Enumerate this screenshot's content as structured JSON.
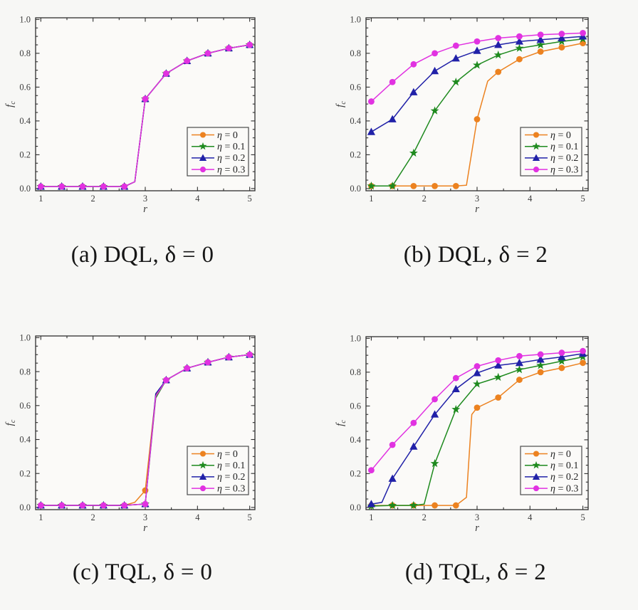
{
  "style": {
    "page_bg": "#f7f7f5",
    "plot_bg": "#fbfaf8",
    "spine": "#2e2e2e",
    "tick_label": "#3c3c3c",
    "caption_color": "#161616",
    "legend_border": "#4a4a4a",
    "series_colors": {
      "eta-0": "#ec8220",
      "eta-0.1": "#1e8a1e",
      "eta-0.2": "#2121a8",
      "eta-0.3": "#e132e1"
    }
  },
  "chart_data": [
    {
      "id": "a",
      "caption": "(a) DQL, δ = 0",
      "type": "line",
      "xlabel": "r",
      "ylabel": "f",
      "ylabel_sub": "c",
      "xlim": [
        0.9,
        5.1
      ],
      "ylim": [
        -0.013,
        1.01
      ],
      "x_ticks": [
        "1",
        "2",
        "3",
        "4",
        "5"
      ],
      "x_minor_ticks": [
        1.5,
        2.5,
        3.5,
        4.5
      ],
      "y_ticks": [
        "0.0",
        "0.2",
        "0.4",
        "0.6",
        "0.8",
        "1.0"
      ],
      "grid": false,
      "legend_position": "lower right",
      "x": [
        1,
        1.4,
        1.8,
        2.2,
        2.6,
        3,
        3.4,
        3.8,
        4.2,
        4.6,
        5
      ],
      "series": [
        {
          "key": "eta-0",
          "name": "η = 0",
          "marker": "circle",
          "color": "#ec8220",
          "values": [
            0.012,
            0.012,
            0.012,
            0.012,
            0.012,
            0.53,
            0.68,
            0.755,
            0.8,
            0.83,
            0.85
          ],
          "line": [
            [
              1,
              0.012
            ],
            [
              1.4,
              0.012
            ],
            [
              1.8,
              0.012
            ],
            [
              2.2,
              0.012
            ],
            [
              2.6,
              0.012
            ],
            [
              2.8,
              0.04
            ],
            [
              3,
              0.53
            ],
            [
              3.4,
              0.68
            ],
            [
              3.8,
              0.755
            ],
            [
              4.2,
              0.8
            ],
            [
              4.6,
              0.83
            ],
            [
              5,
              0.85
            ]
          ]
        },
        {
          "key": "eta-0.1",
          "name": "η = 0.1",
          "marker": "star",
          "color": "#1e8a1e",
          "values": [
            0.012,
            0.012,
            0.012,
            0.012,
            0.012,
            0.53,
            0.68,
            0.755,
            0.8,
            0.83,
            0.85
          ],
          "line": [
            [
              1,
              0.012
            ],
            [
              1.4,
              0.012
            ],
            [
              1.8,
              0.012
            ],
            [
              2.2,
              0.012
            ],
            [
              2.6,
              0.012
            ],
            [
              2.8,
              0.04
            ],
            [
              3,
              0.53
            ],
            [
              3.4,
              0.68
            ],
            [
              3.8,
              0.755
            ],
            [
              4.2,
              0.8
            ],
            [
              4.6,
              0.83
            ],
            [
              5,
              0.85
            ]
          ]
        },
        {
          "key": "eta-0.2",
          "name": "η = 0.2",
          "marker": "triangle",
          "color": "#2121a8",
          "values": [
            0.012,
            0.012,
            0.012,
            0.012,
            0.012,
            0.53,
            0.68,
            0.755,
            0.8,
            0.83,
            0.85
          ],
          "line": [
            [
              1,
              0.012
            ],
            [
              1.4,
              0.012
            ],
            [
              1.8,
              0.012
            ],
            [
              2.2,
              0.012
            ],
            [
              2.6,
              0.012
            ],
            [
              2.8,
              0.04
            ],
            [
              3,
              0.53
            ],
            [
              3.4,
              0.68
            ],
            [
              3.8,
              0.755
            ],
            [
              4.2,
              0.8
            ],
            [
              4.6,
              0.83
            ],
            [
              5,
              0.85
            ]
          ]
        },
        {
          "key": "eta-0.3",
          "name": "η = 0.3",
          "marker": "circle",
          "color": "#e132e1",
          "values": [
            0.012,
            0.012,
            0.012,
            0.012,
            0.012,
            0.53,
            0.68,
            0.755,
            0.8,
            0.83,
            0.85
          ],
          "line": [
            [
              1,
              0.012
            ],
            [
              1.4,
              0.012
            ],
            [
              1.8,
              0.012
            ],
            [
              2.2,
              0.012
            ],
            [
              2.6,
              0.012
            ],
            [
              2.8,
              0.04
            ],
            [
              3,
              0.53
            ],
            [
              3.4,
              0.68
            ],
            [
              3.8,
              0.755
            ],
            [
              4.2,
              0.8
            ],
            [
              4.6,
              0.83
            ],
            [
              5,
              0.85
            ]
          ]
        }
      ]
    },
    {
      "id": "b",
      "caption": "(b) DQL, δ = 2",
      "type": "line",
      "xlabel": "r",
      "ylabel": "f",
      "ylabel_sub": "c",
      "xlim": [
        0.9,
        5.1
      ],
      "ylim": [
        -0.013,
        1.01
      ],
      "x_ticks": [
        "1",
        "2",
        "3",
        "4",
        "5"
      ],
      "x_minor_ticks": [
        1.5,
        2.5,
        3.5,
        4.5
      ],
      "y_ticks": [
        "0.0",
        "0.2",
        "0.4",
        "0.6",
        "0.8",
        "1.0"
      ],
      "grid": false,
      "legend_position": "lower right",
      "x": [
        1,
        1.4,
        1.8,
        2.2,
        2.6,
        3,
        3.4,
        3.8,
        4.2,
        4.6,
        5
      ],
      "series": [
        {
          "key": "eta-0",
          "name": "η = 0",
          "marker": "circle",
          "color": "#ec8220",
          "values": [
            0.015,
            0.015,
            0.015,
            0.015,
            0.015,
            0.41,
            0.69,
            0.765,
            0.81,
            0.835,
            0.86
          ],
          "line": [
            [
              1,
              0.015
            ],
            [
              1.4,
              0.015
            ],
            [
              1.8,
              0.015
            ],
            [
              2.2,
              0.015
            ],
            [
              2.6,
              0.015
            ],
            [
              2.8,
              0.02
            ],
            [
              3,
              0.41
            ],
            [
              3.2,
              0.635
            ],
            [
              3.4,
              0.69
            ],
            [
              3.8,
              0.765
            ],
            [
              4.2,
              0.81
            ],
            [
              4.6,
              0.835
            ],
            [
              5,
              0.86
            ]
          ]
        },
        {
          "key": "eta-0.1",
          "name": "η = 0.1",
          "marker": "star",
          "color": "#1e8a1e",
          "values": [
            0.015,
            0.015,
            0.21,
            0.46,
            0.63,
            0.73,
            0.79,
            0.83,
            0.85,
            0.87,
            0.885
          ]
        },
        {
          "key": "eta-0.2",
          "name": "η = 0.2",
          "marker": "triangle",
          "color": "#2121a8",
          "values": [
            0.335,
            0.41,
            0.57,
            0.695,
            0.77,
            0.815,
            0.85,
            0.87,
            0.88,
            0.89,
            0.9
          ]
        },
        {
          "key": "eta-0.3",
          "name": "η = 0.3",
          "marker": "circle",
          "color": "#e132e1",
          "values": [
            0.515,
            0.63,
            0.735,
            0.8,
            0.845,
            0.87,
            0.89,
            0.9,
            0.91,
            0.915,
            0.92
          ]
        }
      ]
    },
    {
      "id": "c",
      "caption": "(c) TQL, δ = 0",
      "type": "line",
      "xlabel": "r",
      "ylabel": "f",
      "ylabel_sub": "c",
      "xlim": [
        0.9,
        5.1
      ],
      "ylim": [
        -0.013,
        1.01
      ],
      "x_ticks": [
        "1",
        "2",
        "3",
        "4",
        "5"
      ],
      "x_minor_ticks": [
        1.5,
        2.5,
        3.5,
        4.5
      ],
      "y_ticks": [
        "0.0",
        "0.2",
        "0.4",
        "0.6",
        "0.8",
        "1.0"
      ],
      "grid": false,
      "legend_position": "lower right",
      "x": [
        1,
        1.4,
        1.8,
        2.2,
        2.6,
        3,
        3.4,
        3.8,
        4.2,
        4.6,
        5
      ],
      "series": [
        {
          "key": "eta-0",
          "name": "η = 0",
          "marker": "circle",
          "color": "#ec8220",
          "values": [
            0.012,
            0.012,
            0.012,
            0.012,
            0.012,
            0.1,
            0.75,
            0.82,
            0.855,
            0.885,
            0.9
          ],
          "line": [
            [
              1,
              0.012
            ],
            [
              1.4,
              0.012
            ],
            [
              1.8,
              0.012
            ],
            [
              2.2,
              0.012
            ],
            [
              2.6,
              0.012
            ],
            [
              2.8,
              0.03
            ],
            [
              3,
              0.1
            ],
            [
              3.2,
              0.66
            ],
            [
              3.4,
              0.75
            ],
            [
              3.8,
              0.82
            ],
            [
              4.2,
              0.855
            ],
            [
              4.6,
              0.885
            ],
            [
              5,
              0.9
            ]
          ]
        },
        {
          "key": "eta-0.1",
          "name": "η = 0.1",
          "marker": "star",
          "color": "#1e8a1e",
          "values": [
            0.012,
            0.012,
            0.012,
            0.012,
            0.012,
            0.02,
            0.75,
            0.82,
            0.855,
            0.885,
            0.9
          ],
          "line": [
            [
              1,
              0.012
            ],
            [
              1.4,
              0.012
            ],
            [
              1.8,
              0.012
            ],
            [
              2.2,
              0.012
            ],
            [
              2.6,
              0.012
            ],
            [
              3,
              0.02
            ],
            [
              3.2,
              0.645
            ],
            [
              3.4,
              0.75
            ],
            [
              3.8,
              0.82
            ],
            [
              4.2,
              0.855
            ],
            [
              4.6,
              0.885
            ],
            [
              5,
              0.9
            ]
          ]
        },
        {
          "key": "eta-0.2",
          "name": "η = 0.2",
          "marker": "triangle",
          "color": "#2121a8",
          "values": [
            0.012,
            0.012,
            0.012,
            0.012,
            0.012,
            0.02,
            0.75,
            0.82,
            0.855,
            0.885,
            0.9
          ],
          "line": [
            [
              1,
              0.012
            ],
            [
              1.4,
              0.012
            ],
            [
              1.8,
              0.012
            ],
            [
              2.2,
              0.012
            ],
            [
              2.6,
              0.012
            ],
            [
              3,
              0.02
            ],
            [
              3.2,
              0.67
            ],
            [
              3.4,
              0.75
            ],
            [
              3.8,
              0.82
            ],
            [
              4.2,
              0.855
            ],
            [
              4.6,
              0.885
            ],
            [
              5,
              0.9
            ]
          ]
        },
        {
          "key": "eta-0.3",
          "name": "η = 0.3",
          "marker": "circle",
          "color": "#e132e1",
          "values": [
            0.012,
            0.012,
            0.012,
            0.012,
            0.012,
            0.02,
            0.75,
            0.82,
            0.855,
            0.885,
            0.9
          ],
          "line": [
            [
              1,
              0.012
            ],
            [
              1.4,
              0.012
            ],
            [
              1.8,
              0.012
            ],
            [
              2.2,
              0.012
            ],
            [
              2.6,
              0.012
            ],
            [
              3,
              0.02
            ],
            [
              3.2,
              0.655
            ],
            [
              3.4,
              0.75
            ],
            [
              3.8,
              0.82
            ],
            [
              4.2,
              0.855
            ],
            [
              4.6,
              0.885
            ],
            [
              5,
              0.9
            ]
          ]
        }
      ]
    },
    {
      "id": "d",
      "caption": "(d) TQL, δ = 2",
      "type": "line",
      "xlabel": "r",
      "ylabel": "f",
      "ylabel_sub": "c",
      "xlim": [
        0.9,
        5.1
      ],
      "ylim": [
        -0.013,
        1.01
      ],
      "x_ticks": [
        "1",
        "2",
        "3",
        "4",
        "5"
      ],
      "x_minor_ticks": [
        1.5,
        2.5,
        3.5,
        4.5
      ],
      "y_ticks": [
        "0.0",
        "0.2",
        "0.4",
        "0.6",
        "0.8",
        "1.0"
      ],
      "grid": false,
      "legend_position": "lower right",
      "x": [
        1,
        1.4,
        1.8,
        2.2,
        2.6,
        3,
        3.4,
        3.8,
        4.2,
        4.6,
        5
      ],
      "series": [
        {
          "key": "eta-0",
          "name": "η = 0",
          "marker": "circle",
          "color": "#ec8220",
          "values": [
            0.012,
            0.012,
            0.012,
            0.012,
            0.012,
            0.59,
            0.65,
            0.755,
            0.8,
            0.825,
            0.855
          ],
          "line": [
            [
              1,
              0.012
            ],
            [
              1.4,
              0.012
            ],
            [
              1.8,
              0.012
            ],
            [
              2.2,
              0.012
            ],
            [
              2.6,
              0.012
            ],
            [
              2.8,
              0.06
            ],
            [
              2.9,
              0.55
            ],
            [
              3,
              0.59
            ],
            [
              3.4,
              0.65
            ],
            [
              3.8,
              0.755
            ],
            [
              4.2,
              0.8
            ],
            [
              4.6,
              0.825
            ],
            [
              5,
              0.855
            ]
          ]
        },
        {
          "key": "eta-0.1",
          "name": "η = 0.1",
          "marker": "star",
          "color": "#1e8a1e",
          "values": [
            0.008,
            0.012,
            0.012,
            0.26,
            0.58,
            0.73,
            0.77,
            0.815,
            0.84,
            0.865,
            0.89
          ],
          "line": [
            [
              1,
              0.008
            ],
            [
              1.4,
              0.012
            ],
            [
              1.8,
              0.012
            ],
            [
              2,
              0.02
            ],
            [
              2.2,
              0.26
            ],
            [
              2.6,
              0.58
            ],
            [
              3,
              0.73
            ],
            [
              3.4,
              0.77
            ],
            [
              3.8,
              0.815
            ],
            [
              4.2,
              0.84
            ],
            [
              4.6,
              0.865
            ],
            [
              5,
              0.89
            ]
          ]
        },
        {
          "key": "eta-0.2",
          "name": "η = 0.2",
          "marker": "triangle",
          "color": "#2121a8",
          "values": [
            0.02,
            0.17,
            0.36,
            0.55,
            0.7,
            0.795,
            0.84,
            0.855,
            0.875,
            0.89,
            0.91
          ],
          "line": [
            [
              1,
              0.02
            ],
            [
              1.2,
              0.03
            ],
            [
              1.4,
              0.17
            ],
            [
              1.8,
              0.36
            ],
            [
              2.2,
              0.55
            ],
            [
              2.6,
              0.7
            ],
            [
              3,
              0.795
            ],
            [
              3.4,
              0.84
            ],
            [
              3.8,
              0.855
            ],
            [
              4.2,
              0.875
            ],
            [
              4.6,
              0.89
            ],
            [
              5,
              0.91
            ]
          ]
        },
        {
          "key": "eta-0.3",
          "name": "η = 0.3",
          "marker": "circle",
          "color": "#e132e1",
          "values": [
            0.22,
            0.37,
            0.5,
            0.64,
            0.765,
            0.835,
            0.87,
            0.895,
            0.905,
            0.915,
            0.925
          ]
        }
      ]
    }
  ]
}
